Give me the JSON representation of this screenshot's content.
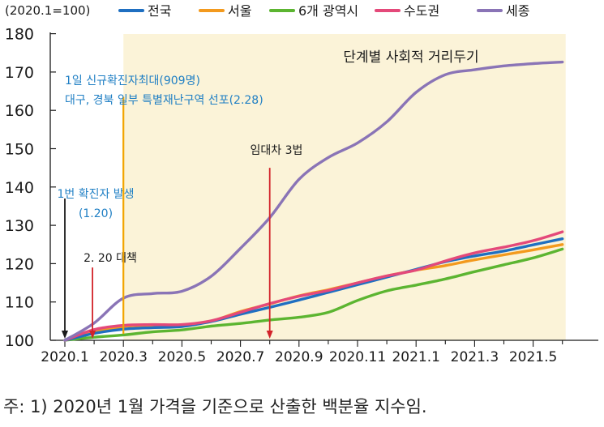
{
  "chart_data": {
    "type": "line",
    "unit_label": "(2020.1=100)",
    "x": [
      "2020.1",
      "2020.2",
      "2020.3",
      "2020.4",
      "2020.5",
      "2020.6",
      "2020.7",
      "2020.8",
      "2020.9",
      "2020.10",
      "2020.11",
      "2020.12",
      "2021.1",
      "2021.2",
      "2021.3",
      "2021.4",
      "2021.5",
      "2021.6"
    ],
    "x_tick_labels": [
      "2020.1",
      "2020.3",
      "2020.5",
      "2020.7",
      "2020.9",
      "2020.11",
      "2021.1",
      "2021.3",
      "2021.5"
    ],
    "ylim": [
      100,
      180
    ],
    "y_ticks": [
      100,
      110,
      120,
      130,
      140,
      150,
      160,
      170,
      180
    ],
    "grid": false,
    "legend_position": "top",
    "series": [
      {
        "name": "전국",
        "color": "#1f6fc1",
        "values": [
          100,
          101.8,
          102.9,
          103.3,
          103.6,
          104.9,
          106.8,
          108.6,
          110.5,
          112.5,
          114.5,
          116.5,
          118.5,
          120.5,
          122.0,
          123.3,
          124.9,
          126.5
        ]
      },
      {
        "name": "서울",
        "color": "#f39a1e",
        "values": [
          100,
          102.2,
          103.6,
          103.9,
          103.9,
          105.0,
          107.5,
          109.5,
          111.6,
          113.2,
          115.0,
          116.8,
          118.3,
          119.5,
          121.0,
          122.3,
          123.6,
          125.0
        ]
      },
      {
        "name": "6개 광역시",
        "color": "#5cb531",
        "values": [
          100,
          100.8,
          101.4,
          102.2,
          102.7,
          103.7,
          104.4,
          105.3,
          106.0,
          107.3,
          110.4,
          112.9,
          114.4,
          116.0,
          117.9,
          119.7,
          121.5,
          123.8
        ]
      },
      {
        "name": "수도권",
        "color": "#e4497a",
        "values": [
          100,
          102.8,
          103.9,
          104.1,
          104.1,
          105.1,
          107.3,
          109.6,
          111.5,
          113.0,
          115.0,
          116.8,
          118.3,
          120.7,
          122.8,
          124.3,
          126.0,
          128.3
        ]
      },
      {
        "name": "세종",
        "color": "#8a74b6",
        "values": [
          100,
          104.5,
          111.0,
          112.2,
          112.8,
          116.7,
          124.0,
          132.0,
          142.0,
          147.7,
          151.5,
          157.0,
          164.7,
          169.3,
          170.6,
          171.6,
          172.2,
          172.6
        ]
      }
    ],
    "shaded_region": {
      "from": "2020.3",
      "to": "2021.6",
      "color": "#fbf3d8",
      "label": "단계별 사회적 거리두기"
    },
    "annotations": [
      {
        "at": "2020.1",
        "color": "#1a1a1a",
        "line_to": 137,
        "text": [
          "1번 확진자 발생",
          "(1.20)"
        ],
        "text_color": "#1f7fc4"
      },
      {
        "at": "2020.2",
        "color": "#d2232a",
        "line_to": 119,
        "text": [
          "2. 20 대책"
        ],
        "text_color": "#1a1a1a"
      },
      {
        "at": "2020.3",
        "color": "#f2a400",
        "line_to": 163.5,
        "text": [
          "1일 신규확진자최대(909명)",
          "대구, 경북 일부 특별재난구역 선포(2.28)"
        ],
        "text_color": "#1f7fc4"
      },
      {
        "at": "2020.8",
        "color": "#d2232a",
        "line_to": 145,
        "text": [
          "임대차 3법"
        ],
        "text_color": "#1a1a1a"
      }
    ]
  },
  "footnote": "주: 1) 2020년 1월 가격을 기준으로 산출한 백분율 지수임."
}
